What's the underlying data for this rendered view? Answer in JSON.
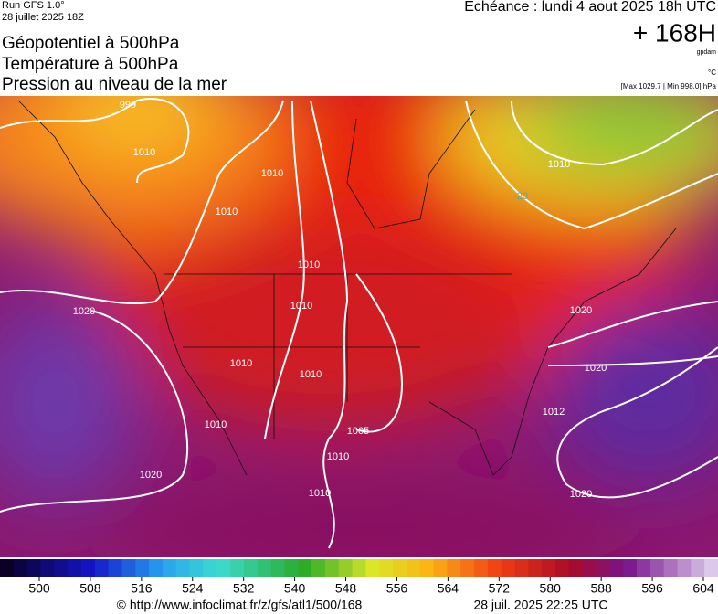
{
  "header": {
    "run": "Run GFS 1.0°",
    "run_date": "28 juillet 2025 18Z",
    "titles": [
      "Géopotentiel à 500hPa",
      "Température à 500hPa",
      "Pression au niveau de la mer"
    ],
    "echeance": "Echéance : lundi 4 aout 2025 18h UTC",
    "lead": "+ 168H",
    "unit_gpdam": "gpdam",
    "unit_temp": "°C",
    "pressure_range": "[Max 1029.7 | Min 998.0] hPa"
  },
  "map": {
    "isobar_labels": [
      "999",
      "1010",
      "1010",
      "1010",
      "1010",
      "1010",
      "1010",
      "1010",
      "1010",
      "1005",
      "1010",
      "1010",
      "1020",
      "1020",
      "1010",
      "1020",
      "1020",
      "1012",
      "1020",
      "-20"
    ]
  },
  "colorbar": {
    "ticks": [
      500,
      508,
      516,
      524,
      532,
      540,
      548,
      556,
      564,
      572,
      580,
      588,
      596,
      604
    ]
  },
  "footer": {
    "url": "© http://www.infoclimat.fr/z/gfs/atl1/500/168",
    "date": "28 juil. 2025 22:25 UTC"
  }
}
